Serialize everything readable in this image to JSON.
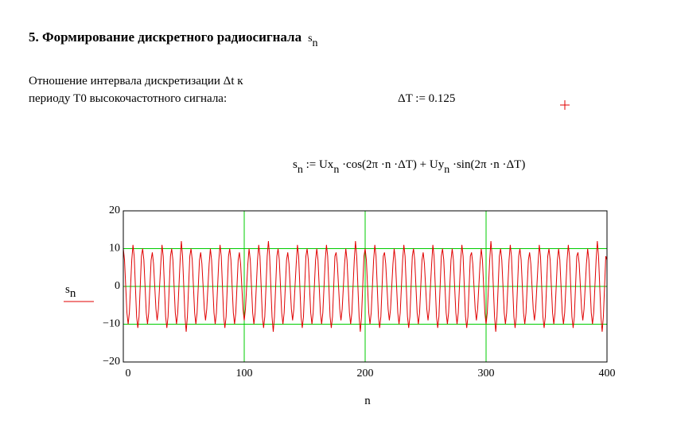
{
  "heading": {
    "text": "5. Формирование дискретного радиосигнала",
    "symbol": "s",
    "symbol_sub": "n"
  },
  "description": [
    "Отношение интервала дискретизации Δt к",
    "периоду  T0 высокочастотного сигнала:"
  ],
  "assignment": "ΔT := 0.125",
  "formula": [
    "s",
    "n",
    " := Ux",
    "n",
    " ·cos(2π ·n ·ΔT) + Uy",
    "n",
    " ·sin(2π ·n ·ΔT)"
  ],
  "chart_data": {
    "type": "line",
    "xlabel": "n",
    "ylabel": "s",
    "ylabel_sub": "n",
    "xlim": [
      0,
      400
    ],
    "ylim": [
      -20,
      20
    ],
    "xticks": [
      0,
      100,
      200,
      300,
      400
    ],
    "yticks": [
      {
        "value": -20,
        "label": "−20"
      },
      {
        "value": -10,
        "label": "−10"
      },
      0,
      10,
      20
    ],
    "grid": true,
    "grid_color": "#00cc00",
    "x": [
      0,
      1,
      2,
      3,
      4,
      5,
      6,
      7,
      8,
      9,
      10,
      11,
      12,
      13,
      14,
      15,
      16,
      17,
      18,
      19,
      20,
      21,
      22,
      23,
      24,
      25,
      26,
      27,
      28,
      29,
      30,
      31,
      32,
      33,
      34,
      35,
      36,
      37,
      38,
      39,
      40,
      41,
      42,
      43,
      44,
      45,
      46,
      47,
      48,
      49,
      50,
      51,
      52,
      53,
      54,
      55,
      56,
      57,
      58,
      59,
      60,
      61,
      62,
      63,
      64,
      65,
      66,
      67,
      68,
      69,
      70,
      71,
      72,
      73,
      74,
      75,
      76,
      77,
      78,
      79,
      80,
      81,
      82,
      83,
      84,
      85,
      86,
      87,
      88,
      89,
      90,
      91,
      92,
      93,
      94,
      95,
      96,
      97,
      98,
      99,
      100,
      101,
      102,
      103,
      104,
      105,
      106,
      107,
      108,
      109,
      110,
      111,
      112,
      113,
      114,
      115,
      116,
      117,
      118,
      119,
      120,
      121,
      122,
      123,
      124,
      125,
      126,
      127,
      128,
      129,
      130,
      131,
      132,
      133,
      134,
      135,
      136,
      137,
      138,
      139,
      140,
      141,
      142,
      143,
      144,
      145,
      146,
      147,
      148,
      149,
      150,
      151,
      152,
      153,
      154,
      155,
      156,
      157,
      158,
      159,
      160,
      161,
      162,
      163,
      164,
      165,
      166,
      167,
      168,
      169,
      170,
      171,
      172,
      173,
      174,
      175,
      176,
      177,
      178,
      179,
      180,
      181,
      182,
      183,
      184,
      185,
      186,
      187,
      188,
      189,
      190,
      191,
      192,
      193,
      194,
      195,
      196,
      197,
      198,
      199,
      200,
      201,
      202,
      203,
      204,
      205,
      206,
      207,
      208,
      209,
      210,
      211,
      212,
      213,
      214,
      215,
      216,
      217,
      218,
      219,
      220,
      221,
      222,
      223,
      224,
      225,
      226,
      227,
      228,
      229,
      230,
      231,
      232,
      233,
      234,
      235,
      236,
      237,
      238,
      239,
      240,
      241,
      242,
      243,
      244,
      245,
      246,
      247,
      248,
      249,
      250,
      251,
      252,
      253,
      254,
      255,
      256,
      257,
      258,
      259,
      260,
      261,
      262,
      263,
      264,
      265,
      266,
      267,
      268,
      269,
      270,
      271,
      272,
      273,
      274,
      275,
      276,
      277,
      278,
      279,
      280,
      281,
      282,
      283,
      284,
      285,
      286,
      287,
      288,
      289,
      290,
      291,
      292,
      293,
      294,
      295,
      296,
      297,
      298,
      299,
      300,
      301,
      302,
      303,
      304,
      305,
      306,
      307,
      308,
      309,
      310,
      311,
      312,
      313,
      314,
      315,
      316,
      317,
      318,
      319,
      320,
      321,
      322,
      323,
      324,
      325,
      326,
      327,
      328,
      329,
      330,
      331,
      332,
      333,
      334,
      335,
      336,
      337,
      338,
      339,
      340,
      341,
      342,
      343,
      344,
      345,
      346,
      347,
      348,
      349,
      350,
      351,
      352,
      353,
      354,
      355,
      356,
      357,
      358,
      359,
      360,
      361,
      362,
      363,
      364,
      365,
      366,
      367,
      368,
      369,
      370,
      371,
      372,
      373,
      374,
      375,
      376,
      377,
      378,
      379,
      380,
      381,
      382,
      383,
      384,
      385,
      386,
      387,
      388,
      389,
      390,
      391,
      392,
      393,
      394,
      395,
      396,
      397,
      398,
      399,
      400
    ],
    "series": [
      {
        "color": "#e00000",
        "values": [
          10,
          7,
          0,
          -7,
          -10,
          -7,
          0,
          7,
          11,
          8,
          0,
          -8,
          -11,
          -8,
          0,
          8,
          10,
          7,
          0,
          -7,
          -10,
          -7,
          0,
          7,
          9,
          6,
          0,
          -6,
          -9,
          -6,
          0,
          6,
          11,
          8,
          0,
          -8,
          -11,
          -8,
          0,
          8,
          10,
          7,
          0,
          -7,
          -10,
          -7,
          0,
          7,
          12,
          8,
          0,
          -8,
          -12,
          -8,
          0,
          8,
          10,
          7,
          0,
          -7,
          -10,
          -7,
          0,
          7,
          9,
          6,
          0,
          -6,
          -9,
          -6,
          0,
          6,
          10,
          7,
          0,
          -7,
          -10,
          -7,
          0,
          7,
          11,
          8,
          0,
          -8,
          -11,
          -8,
          0,
          8,
          10,
          7,
          0,
          -7,
          -10,
          -7,
          0,
          7,
          9,
          6,
          0,
          -6,
          -9,
          -6,
          0,
          6,
          10,
          7,
          0,
          -7,
          -10,
          -7,
          0,
          7,
          11,
          8,
          0,
          -8,
          -11,
          -8,
          0,
          8,
          12,
          8,
          0,
          -8,
          -12,
          -8,
          0,
          8,
          10,
          7,
          0,
          -7,
          -10,
          -7,
          0,
          7,
          9,
          6,
          0,
          -6,
          -9,
          -6,
          0,
          6,
          11,
          8,
          0,
          -8,
          -11,
          -8,
          0,
          8,
          10,
          7,
          0,
          -7,
          -10,
          -7,
          0,
          7,
          10,
          7,
          0,
          -7,
          -10,
          -7,
          0,
          7,
          11,
          8,
          0,
          -8,
          -11,
          -8,
          0,
          8,
          9,
          6,
          0,
          -6,
          -9,
          -6,
          0,
          6,
          10,
          7,
          0,
          -7,
          -10,
          -7,
          0,
          7,
          12,
          8,
          0,
          -8,
          -12,
          -8,
          0,
          8,
          10,
          7,
          0,
          -7,
          -10,
          -7,
          0,
          7,
          11,
          8,
          0,
          -8,
          -11,
          -8,
          0,
          8,
          9,
          6,
          0,
          -6,
          -9,
          -6,
          0,
          6,
          10,
          7,
          0,
          -7,
          -10,
          -7,
          0,
          7,
          11,
          8,
          0,
          -8,
          -11,
          -8,
          0,
          8,
          10,
          7,
          0,
          -7,
          -10,
          -7,
          0,
          7,
          9,
          6,
          0,
          -6,
          -9,
          -6,
          0,
          6,
          11,
          8,
          0,
          -8,
          -11,
          -8,
          0,
          8,
          10,
          7,
          0,
          -7,
          -10,
          -7,
          0,
          7,
          10,
          7,
          0,
          -7,
          -10,
          -7,
          0,
          7,
          11,
          8,
          0,
          -8,
          -11,
          -8,
          0,
          8,
          9,
          6,
          0,
          -6,
          -9,
          -6,
          0,
          6,
          10,
          7,
          0,
          -7,
          -10,
          -7,
          0,
          7,
          12,
          8,
          0,
          -8,
          -12,
          -8,
          0,
          8,
          10,
          7,
          0,
          -7,
          -10,
          -7,
          0,
          7,
          11,
          8,
          0,
          -8,
          -11,
          -8,
          0,
          8,
          10,
          7,
          0,
          -7,
          -10,
          -7,
          0,
          7,
          9,
          6,
          0,
          -6,
          -9,
          -6,
          0,
          6,
          11,
          8,
          0,
          -8,
          -11,
          -8,
          0,
          8,
          10,
          7,
          0,
          -7,
          -10,
          -7,
          0,
          7,
          10,
          7,
          0,
          -7,
          -10,
          -7,
          0,
          7,
          11,
          8,
          0,
          -8,
          -11,
          -8,
          0,
          8,
          9,
          6,
          0,
          -6,
          -9,
          -6,
          0,
          6,
          10,
          7,
          0,
          -7,
          -10,
          -7,
          0,
          7,
          12,
          8,
          0,
          -8,
          -12,
          -8,
          0,
          8,
          7
        ]
      }
    ]
  }
}
